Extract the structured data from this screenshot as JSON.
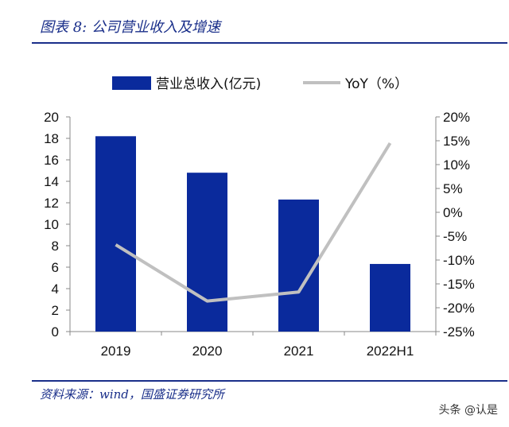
{
  "figure": {
    "title": "图表 8:  公司营业收入及增速",
    "source": "资料来源：wind，国盛证券研究所",
    "watermark": "头条 @认是"
  },
  "colors": {
    "bar": "#0a2a9c",
    "line": "#c0c0c0",
    "axis": "#888888",
    "title": "#1a2f8a"
  },
  "chart_data": {
    "type": "bar",
    "categories": [
      "2019",
      "2020",
      "2021",
      "2022H1"
    ],
    "series": [
      {
        "name": "营业总收入(亿元)",
        "type": "bar",
        "axis": "left",
        "values": [
          18.2,
          14.8,
          12.3,
          6.3
        ]
      },
      {
        "name": "YoY（%）",
        "type": "line",
        "axis": "right",
        "values": [
          -6.8,
          -18.6,
          -16.7,
          14.5
        ]
      }
    ],
    "y_left": {
      "lim": [
        0,
        20
      ],
      "ticks": [
        "0",
        "2",
        "4",
        "6",
        "8",
        "10",
        "12",
        "14",
        "16",
        "18",
        "20"
      ]
    },
    "y_right": {
      "lim": [
        -25,
        20
      ],
      "ticks": [
        "-25%",
        "-20%",
        "-15%",
        "-10%",
        "-5%",
        "0%",
        "5%",
        "10%",
        "15%",
        "20%"
      ]
    },
    "grid": false,
    "legend": "top-center"
  }
}
